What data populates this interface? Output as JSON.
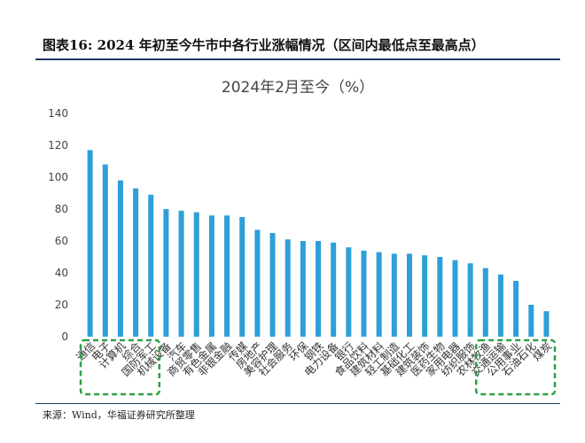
{
  "figure_title": "图表16:  2024 年初至今牛市中各行业涨幅情况（区间内最低点至最高点）",
  "source": "来源：Wind，华福证券研究所整理",
  "colors": {
    "bar": "#2e9fd8",
    "highlight_box": "#2ea043",
    "rule": "#1f3864"
  },
  "chart_data": {
    "type": "bar",
    "title": "2024年2月至今（%）",
    "xlabel": "",
    "ylabel": "",
    "ylim": [
      0,
      140
    ],
    "yticks": [
      0,
      20,
      40,
      60,
      80,
      100,
      120,
      140
    ],
    "grid": false,
    "legend": "none",
    "categories": [
      "通信",
      "电子",
      "计算机",
      "综合",
      "国防军工",
      "机械设备",
      "汽车",
      "商贸零售",
      "有色金属",
      "非银金融",
      "传媒",
      "房地产",
      "美容护理",
      "社会服务",
      "环保",
      "钢铁",
      "电力设备",
      "银行",
      "食品饮料",
      "建筑材料",
      "轻工制造",
      "基础化工",
      "建筑装饰",
      "医药生物",
      "家用电器",
      "纺织服饰",
      "农林牧渔",
      "交通运输",
      "公用事业",
      "石油石化",
      "煤炭"
    ],
    "values": [
      117,
      108,
      98,
      93,
      89,
      80,
      79,
      78,
      76,
      76,
      75,
      67,
      65,
      61,
      60,
      60,
      59,
      56,
      54,
      53,
      52,
      52,
      51,
      50,
      48,
      46,
      43,
      39,
      35,
      20,
      16
    ],
    "highlight_groups": [
      {
        "start": 0,
        "end": 4
      },
      {
        "start": 26,
        "end": 30
      }
    ]
  }
}
